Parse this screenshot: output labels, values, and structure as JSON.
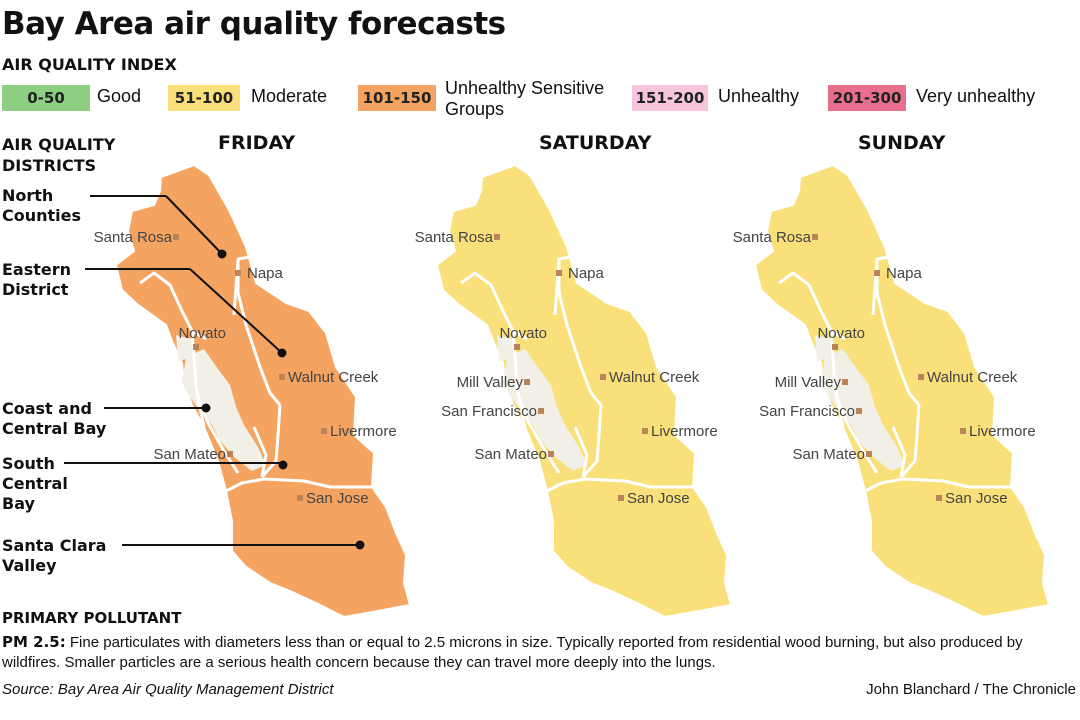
{
  "title": "Bay Area air quality forecasts",
  "aqi": {
    "heading": "AIR QUALITY INDEX",
    "categories": [
      {
        "range": "0-50",
        "label": "Good",
        "color": "#8ecf84"
      },
      {
        "range": "51-100",
        "label": "Moderate",
        "color": "#f9e07a"
      },
      {
        "range": "101-150",
        "label": "Unhealthy Sensitive Groups",
        "color": "#f4a460"
      },
      {
        "range": "151-200",
        "label": "Unhealthy",
        "color": "#f7c6dd"
      },
      {
        "range": "201-300",
        "label": "Very unhealthy",
        "color": "#e76f8b"
      }
    ]
  },
  "districts_heading": "AIR QUALITY DISTRICTS",
  "districts": [
    "North Counties",
    "Eastern District",
    "Coast and Central Bay",
    "South Central Bay",
    "Santa Clara Valley"
  ],
  "days": [
    {
      "name": "FRIDAY",
      "color": "#f4a460",
      "cities": [
        "Santa Rosa",
        "Napa",
        "Novato",
        "Walnut Creek",
        "Livermore",
        "San Mateo",
        "San Jose"
      ]
    },
    {
      "name": "SATURDAY",
      "color": "#f9e07a",
      "cities": [
        "Santa Rosa",
        "Napa",
        "Novato",
        "Mill Valley",
        "Walnut Creek",
        "San Francisco",
        "Livermore",
        "San Mateo",
        "San Jose"
      ]
    },
    {
      "name": "SUNDAY",
      "color": "#f9e07a",
      "cities": [
        "Santa Rosa",
        "Napa",
        "Novato",
        "Mill Valley",
        "Walnut Creek",
        "San Francisco",
        "Livermore",
        "San Mateo",
        "San Jose"
      ]
    }
  ],
  "pollutant": {
    "heading": "PRIMARY POLLUTANT",
    "name": "PM 2.5:",
    "description": "Fine particulates with diameters less than or equal to 2.5 microns in size. Typically reported from residential wood burning, but also produced by wildfires. Smaller particles are a serious health concern because they can travel more deeply into the lungs."
  },
  "source": "Source: Bay Area Air Quality Management District",
  "credit": "John Blanchard / The Chronicle"
}
